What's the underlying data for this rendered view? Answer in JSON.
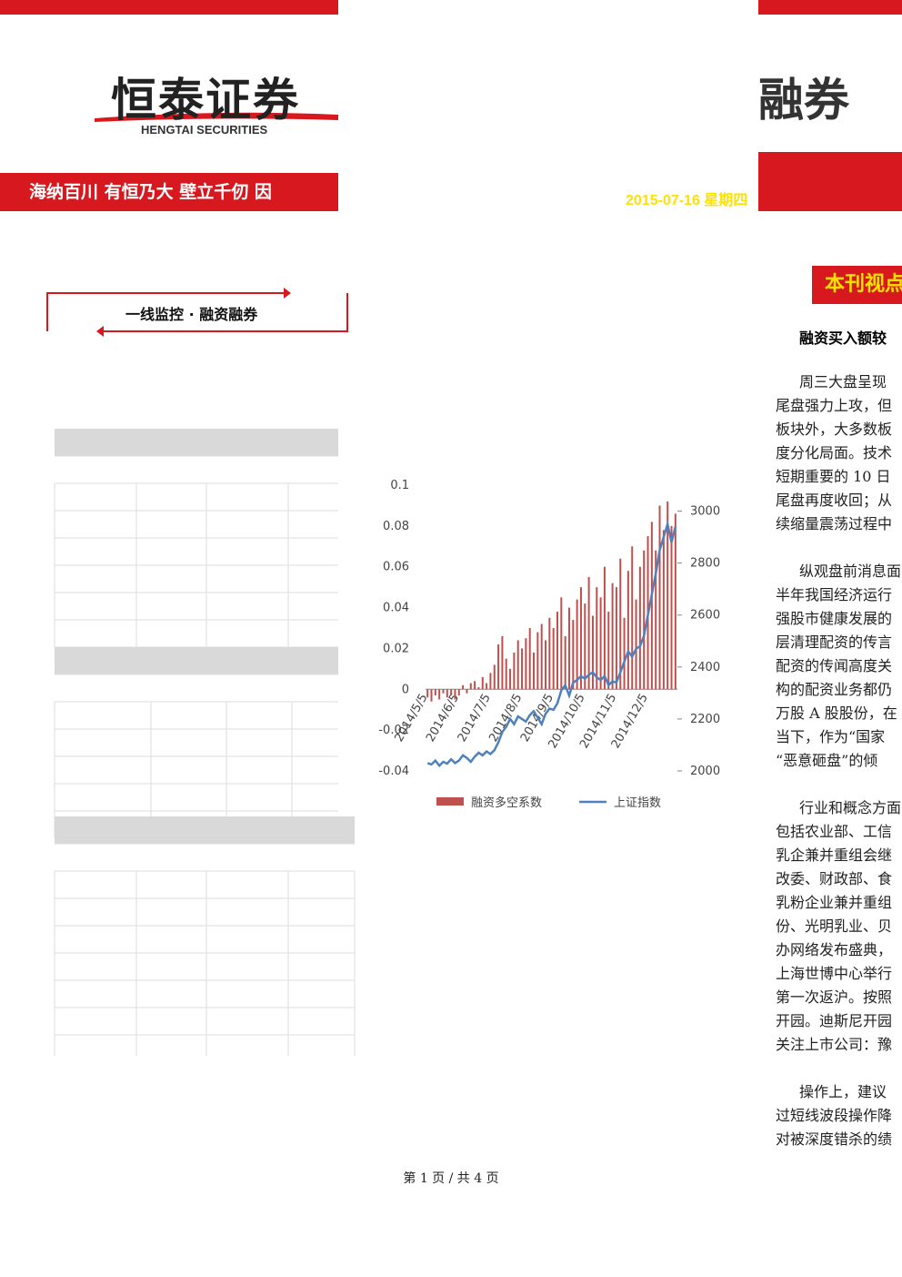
{
  "header": {
    "logo": "恒泰证券",
    "logo_en": "HENGTAI SECURITIES",
    "slogan": "海纳百川 有恒乃大 壁立千仞 因",
    "logo_right": "融券",
    "date": "2015-07-16 星期四"
  },
  "section": "一线监控 · 融资融券",
  "viewpoint": {
    "title": "本刊视点",
    "subtitle": "融资买入额较",
    "paragraphs": [
      [
        "周三大盘呈现",
        "尾盘强力上攻，但",
        "板块外，大多数板",
        "度分化局面。技术",
        "短期重要的 10 日",
        "尾盘再度收回；从",
        "续缩量震荡过程中"
      ],
      [
        "纵观盘前消息面",
        "半年我国经济运行",
        "强股市健康发展的",
        "层清理配资的传言",
        "配资的传闻高度关",
        "构的配资业务都仍",
        "万股 A 股股份，在",
        "当下，作为“国家",
        "“恶意砸盘”的倾"
      ],
      [
        "行业和概念方面",
        "包括农业部、工信",
        "乳企兼并重组会继",
        "改委、财政部、食",
        "乳粉企业兼并重组",
        "份、光明乳业、贝",
        "办网络发布盛典，",
        "上海世博中心举行",
        "第一次返沪。按照",
        "开园。迪斯尼开园",
        "关注上市公司：豫"
      ],
      [
        "操作上，建议",
        "过短线波段操作降",
        "对被深度错杀的绩"
      ]
    ]
  },
  "chart_data": {
    "type": "bar-line",
    "categories": [
      "2014/5/5",
      null,
      null,
      null,
      null,
      null,
      null,
      null,
      "2014/6/5",
      null,
      null,
      null,
      null,
      null,
      null,
      null,
      "2014/7/5",
      null,
      null,
      null,
      null,
      null,
      null,
      null,
      "2014/8/5",
      null,
      null,
      null,
      null,
      null,
      null,
      null,
      "2014/9/5",
      null,
      null,
      null,
      null,
      null,
      null,
      null,
      "2014/10/5",
      null,
      null,
      null,
      null,
      null,
      null,
      null,
      "2014/11/5",
      null,
      null,
      null,
      null,
      null,
      null,
      null,
      "2014/12/5",
      null,
      null,
      null,
      null,
      null,
      null,
      null
    ],
    "series": [
      {
        "name": "融资多空系数",
        "color": "#c0504d",
        "type": "bar",
        "values": [
          -0.004,
          -0.006,
          -0.003,
          -0.005,
          -0.002,
          -0.004,
          -0.003,
          -0.005,
          -0.003,
          0.002,
          -0.002,
          0.003,
          0.004,
          0.001,
          0.006,
          0.003,
          0.008,
          0.012,
          0.022,
          0.026,
          0.015,
          0.01,
          0.018,
          0.024,
          0.02,
          0.025,
          0.03,
          0.018,
          0.028,
          0.032,
          0.024,
          0.035,
          0.03,
          0.038,
          0.045,
          0.026,
          0.04,
          0.034,
          0.044,
          0.05,
          0.042,
          0.055,
          0.036,
          0.05,
          0.045,
          0.06,
          0.038,
          0.052,
          0.05,
          0.064,
          0.035,
          0.058,
          0.07,
          0.044,
          0.06,
          0.068,
          0.075,
          0.082,
          0.068,
          0.09,
          0.078,
          0.092,
          0.08,
          0.086
        ]
      },
      {
        "name": "上证指数",
        "color": "#4f81bd",
        "type": "line",
        "axis": "y2",
        "values": [
          2030,
          2025,
          2040,
          2020,
          2035,
          2028,
          2045,
          2030,
          2040,
          2060,
          2050,
          2035,
          2055,
          2070,
          2060,
          2075,
          2065,
          2080,
          2110,
          2150,
          2170,
          2200,
          2180,
          2210,
          2200,
          2190,
          2215,
          2230,
          2205,
          2180,
          2220,
          2240,
          2235,
          2260,
          2310,
          2330,
          2290,
          2340,
          2350,
          2365,
          2355,
          2370,
          2380,
          2360,
          2350,
          2365,
          2330,
          2345,
          2340,
          2380,
          2420,
          2460,
          2440,
          2470,
          2480,
          2520,
          2600,
          2680,
          2760,
          2850,
          2900,
          2950,
          2880,
          2940
        ]
      }
    ],
    "ylim": [
      -0.04,
      0.1
    ],
    "yticks": [
      -0.04,
      -0.02,
      0,
      0.02,
      0.04,
      0.06,
      0.08,
      0.1
    ],
    "y2lim": [
      2000,
      3100
    ],
    "y2ticks": [
      2000,
      2200,
      2400,
      2600,
      2800,
      3000
    ]
  },
  "footer": "第 1 页 / 共 4 页"
}
